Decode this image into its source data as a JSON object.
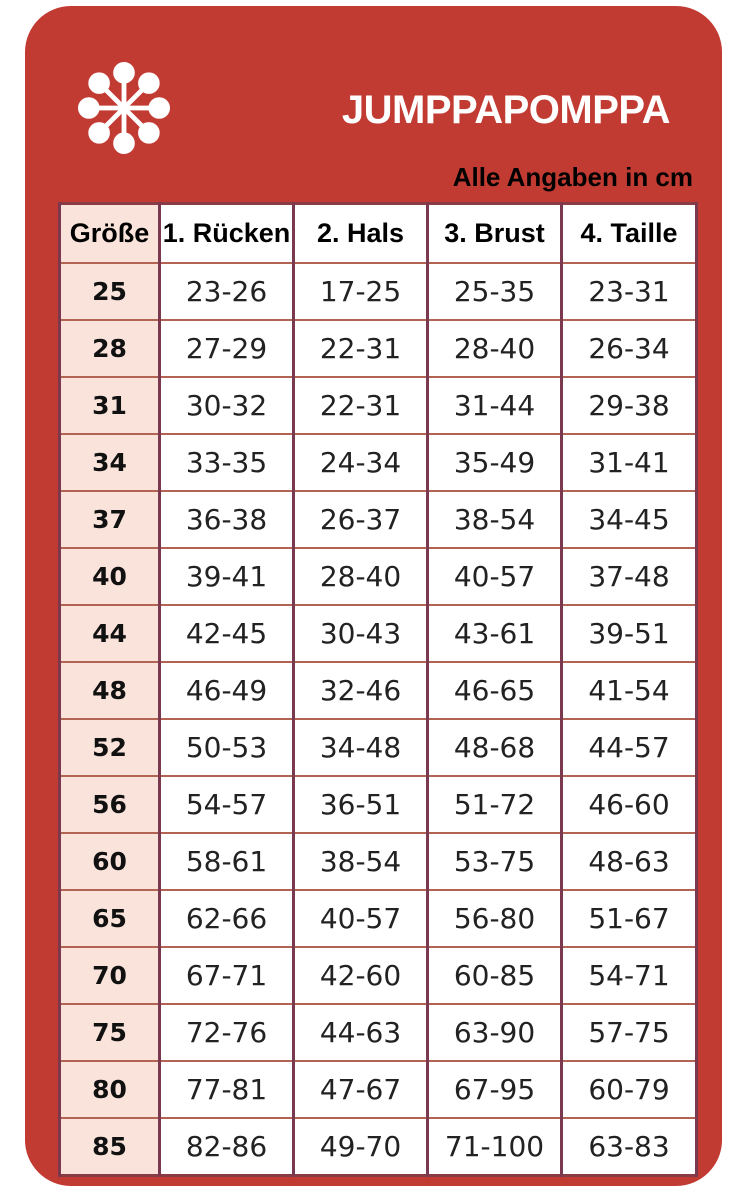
{
  "brand": {
    "title": "JUMPPAPOMPPA",
    "logo": "snowflake-icon"
  },
  "note": "Alle Angaben in cm",
  "colors": {
    "card_red": "#c23b33",
    "label_column_bg": "#f9e3da",
    "grid_vertical": "#7a394f",
    "grid_horizontal": "#b26354",
    "title_text": "#ffffff",
    "note_text": "#000000",
    "body_text": "#222222"
  },
  "chart_data": {
    "type": "table",
    "title": "JUMPPAPOMPPA",
    "subtitle": "Alle Angaben in cm",
    "units": "cm",
    "columns": [
      "Größe",
      "1. Rücken",
      "2. Hals",
      "3. Brust",
      "4. Taille"
    ],
    "rows": [
      [
        "25",
        "23-26",
        "17-25",
        "25-35",
        "23-31"
      ],
      [
        "28",
        "27-29",
        "22-31",
        "28-40",
        "26-34"
      ],
      [
        "31",
        "30-32",
        "22-31",
        "31-44",
        "29-38"
      ],
      [
        "34",
        "33-35",
        "24-34",
        "35-49",
        "31-41"
      ],
      [
        "37",
        "36-38",
        "26-37",
        "38-54",
        "34-45"
      ],
      [
        "40",
        "39-41",
        "28-40",
        "40-57",
        "37-48"
      ],
      [
        "44",
        "42-45",
        "30-43",
        "43-61",
        "39-51"
      ],
      [
        "48",
        "46-49",
        "32-46",
        "46-65",
        "41-54"
      ],
      [
        "52",
        "50-53",
        "34-48",
        "48-68",
        "44-57"
      ],
      [
        "56",
        "54-57",
        "36-51",
        "51-72",
        "46-60"
      ],
      [
        "60",
        "58-61",
        "38-54",
        "53-75",
        "48-63"
      ],
      [
        "65",
        "62-66",
        "40-57",
        "56-80",
        "51-67"
      ],
      [
        "70",
        "67-71",
        "42-60",
        "60-85",
        "54-71"
      ],
      [
        "75",
        "72-76",
        "44-63",
        "63-90",
        "57-75"
      ],
      [
        "80",
        "77-81",
        "47-67",
        "67-95",
        "60-79"
      ],
      [
        "85",
        "82-86",
        "49-70",
        "71-100",
        "63-83"
      ]
    ]
  }
}
